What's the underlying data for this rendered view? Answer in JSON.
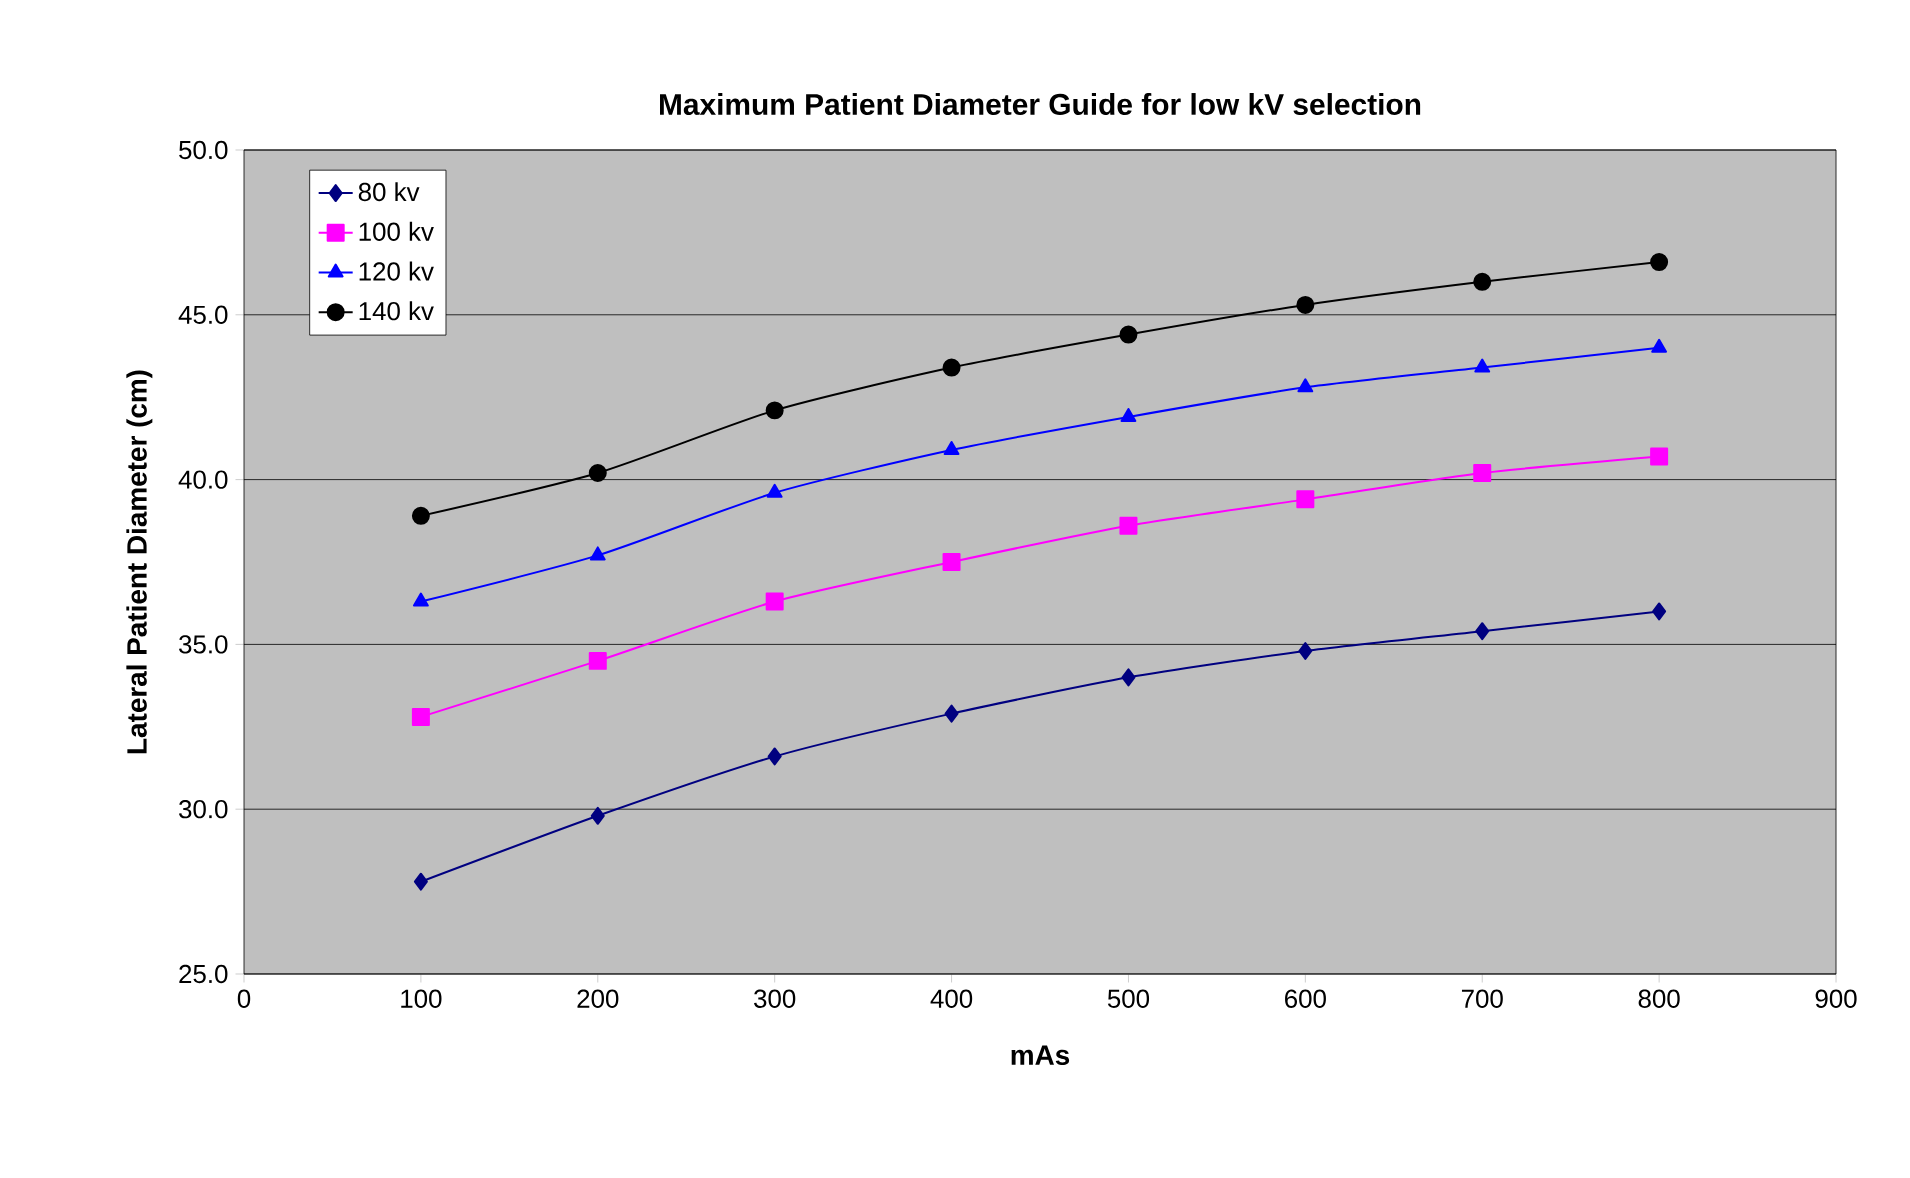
{
  "chart_data": {
    "type": "line",
    "title": "Maximum Patient Diameter Guide for low kV selection",
    "xlabel": "mAs",
    "ylabel": "Lateral Patient Diameter (cm)",
    "x": [
      100,
      200,
      300,
      400,
      500,
      600,
      700,
      800
    ],
    "series": [
      {
        "name": "80 kv",
        "color": "#000080",
        "marker": "diamond",
        "values": [
          27.8,
          29.8,
          31.6,
          32.9,
          34.0,
          34.8,
          35.4,
          36.0
        ]
      },
      {
        "name": "100 kv",
        "color": "#ff00ff",
        "marker": "square",
        "values": [
          32.8,
          34.5,
          36.3,
          37.5,
          38.6,
          39.4,
          40.2,
          40.7
        ]
      },
      {
        "name": "120 kv",
        "color": "#0000ff",
        "marker": "triangle",
        "values": [
          36.3,
          37.7,
          39.6,
          40.9,
          41.9,
          42.8,
          43.4,
          44.0
        ]
      },
      {
        "name": "140 kv",
        "color": "#000000",
        "marker": "circle",
        "values": [
          38.9,
          40.2,
          42.1,
          43.4,
          44.4,
          45.3,
          46.0,
          46.6
        ]
      }
    ],
    "xlim": [
      0,
      900
    ],
    "xticks": [
      0,
      100,
      200,
      300,
      400,
      500,
      600,
      700,
      800,
      900
    ],
    "ylim": [
      25,
      50
    ],
    "yticks": [
      {
        "value": 25,
        "label": "25.0"
      },
      {
        "value": 30,
        "label": "30.0"
      },
      {
        "value": 35,
        "label": "35.0"
      },
      {
        "value": 40,
        "label": "40.0"
      },
      {
        "value": 45,
        "label": "45.0"
      },
      {
        "value": 50,
        "label": "50.0"
      }
    ],
    "grid": "y",
    "legend": "top left"
  }
}
